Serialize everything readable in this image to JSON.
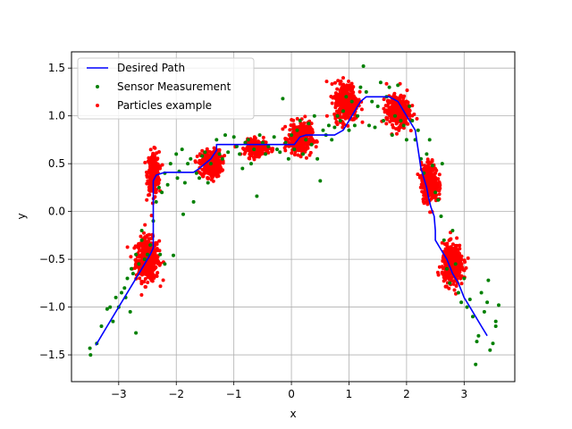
{
  "chart_data": {
    "type": "scatter",
    "xlabel": "x",
    "ylabel": "y",
    "xlim": [
      -3.82,
      3.88
    ],
    "ylim": [
      -1.78,
      1.67
    ],
    "xticks": [
      -3,
      -2,
      -1,
      0,
      1,
      2,
      3
    ],
    "yticks": [
      -1.5,
      -1.0,
      -0.5,
      0.0,
      0.5,
      1.0,
      1.5
    ],
    "xtick_labels": [
      "−3",
      "−2",
      "−1",
      "0",
      "1",
      "2",
      "3"
    ],
    "ytick_labels": [
      "−1.5",
      "−1.0",
      "−0.5",
      "0.0",
      "0.5",
      "1.0",
      "1.5"
    ],
    "grid": true,
    "legend_position": "top-left",
    "colors": {
      "desired_path": "#0000ff",
      "sensor": "#008000",
      "particles": "#ff0000"
    },
    "series": [
      {
        "name": "Desired Path",
        "kind": "line",
        "points": [
          [
            -3.4,
            -1.4
          ],
          [
            -3.2,
            -1.2
          ],
          [
            -3.0,
            -1.0
          ],
          [
            -2.8,
            -0.8
          ],
          [
            -2.6,
            -0.6
          ],
          [
            -2.45,
            -0.45
          ],
          [
            -2.4,
            -0.38
          ],
          [
            -2.4,
            0.0
          ],
          [
            -2.4,
            0.32
          ],
          [
            -2.35,
            0.38
          ],
          [
            -2.2,
            0.41
          ],
          [
            -1.7,
            0.41
          ],
          [
            -1.6,
            0.45
          ],
          [
            -1.5,
            0.5
          ],
          [
            -1.4,
            0.55
          ],
          [
            -1.3,
            0.64
          ],
          [
            -1.3,
            0.7
          ],
          [
            -1.0,
            0.7
          ],
          [
            -0.6,
            0.7
          ],
          [
            -0.2,
            0.7
          ],
          [
            0.05,
            0.7
          ],
          [
            0.15,
            0.78
          ],
          [
            0.25,
            0.8
          ],
          [
            0.5,
            0.8
          ],
          [
            0.75,
            0.8
          ],
          [
            0.9,
            0.85
          ],
          [
            1.0,
            0.95
          ],
          [
            1.1,
            1.05
          ],
          [
            1.2,
            1.15
          ],
          [
            1.3,
            1.2
          ],
          [
            1.5,
            1.2
          ],
          [
            1.7,
            1.2
          ],
          [
            1.85,
            1.15
          ],
          [
            1.95,
            1.05
          ],
          [
            2.05,
            0.95
          ],
          [
            2.15,
            0.85
          ],
          [
            2.2,
            0.65
          ],
          [
            2.25,
            0.45
          ],
          [
            2.3,
            0.35
          ],
          [
            2.35,
            0.25
          ],
          [
            2.38,
            0.15
          ],
          [
            2.42,
            0.05
          ],
          [
            2.48,
            -0.05
          ],
          [
            2.5,
            -0.2
          ],
          [
            2.5,
            -0.3
          ],
          [
            2.6,
            -0.4
          ],
          [
            2.7,
            -0.5
          ],
          [
            2.8,
            -0.65
          ],
          [
            2.9,
            -0.75
          ],
          [
            3.0,
            -0.9
          ],
          [
            3.1,
            -1.0
          ],
          [
            3.2,
            -1.1
          ],
          [
            3.3,
            -1.2
          ],
          [
            3.4,
            -1.3
          ]
        ]
      },
      {
        "name": "Sensor Measurement",
        "kind": "scatter",
        "points": [
          [
            -3.5,
            -1.43
          ],
          [
            -3.49,
            -1.5
          ],
          [
            -3.38,
            -1.38
          ],
          [
            -3.3,
            -1.2
          ],
          [
            -3.2,
            -1.02
          ],
          [
            -3.15,
            -1.0
          ],
          [
            -3.1,
            -1.15
          ],
          [
            -3.05,
            -0.9
          ],
          [
            -3.0,
            -1.0
          ],
          [
            -2.95,
            -0.85
          ],
          [
            -2.9,
            -0.8
          ],
          [
            -2.88,
            -0.9
          ],
          [
            -2.85,
            -0.7
          ],
          [
            -2.8,
            -1.05
          ],
          [
            -2.78,
            -0.6
          ],
          [
            -2.75,
            -0.65
          ],
          [
            -2.7,
            -1.27
          ],
          [
            -2.7,
            -0.45
          ],
          [
            -2.65,
            -0.55
          ],
          [
            -2.6,
            -0.3
          ],
          [
            -2.6,
            -0.2
          ],
          [
            -2.55,
            -0.5
          ],
          [
            -2.5,
            -0.45
          ],
          [
            -2.45,
            -0.35
          ],
          [
            -2.4,
            -0.1
          ],
          [
            -2.35,
            0.1
          ],
          [
            -2.3,
            0.25
          ],
          [
            -2.28,
            -0.45
          ],
          [
            -2.25,
            0.2
          ],
          [
            -2.2,
            -0.55
          ],
          [
            -2.2,
            0.4
          ],
          [
            -2.15,
            0.28
          ],
          [
            -2.1,
            0.5
          ],
          [
            -2.05,
            -0.46
          ],
          [
            -2.0,
            0.6
          ],
          [
            -1.98,
            0.35
          ],
          [
            -1.95,
            0.42
          ],
          [
            -1.9,
            0.65
          ],
          [
            -1.88,
            -0.03
          ],
          [
            -1.85,
            0.3
          ],
          [
            -1.8,
            0.5
          ],
          [
            -1.75,
            0.55
          ],
          [
            -1.7,
            0.1
          ],
          [
            -1.65,
            0.4
          ],
          [
            -1.6,
            0.35
          ],
          [
            -1.55,
            0.58
          ],
          [
            -1.5,
            0.62
          ],
          [
            -1.45,
            0.3
          ],
          [
            -1.4,
            0.5
          ],
          [
            -1.3,
            0.75
          ],
          [
            -1.25,
            0.6
          ],
          [
            -1.2,
            0.55
          ],
          [
            -1.15,
            0.8
          ],
          [
            -1.1,
            0.62
          ],
          [
            -1.0,
            0.78
          ],
          [
            -0.95,
            0.68
          ],
          [
            -0.9,
            0.6
          ],
          [
            -0.85,
            0.45
          ],
          [
            -0.8,
            0.72
          ],
          [
            -0.75,
            0.75
          ],
          [
            -0.7,
            0.5
          ],
          [
            -0.65,
            0.65
          ],
          [
            -0.6,
            0.16
          ],
          [
            -0.55,
            0.8
          ],
          [
            -0.5,
            0.72
          ],
          [
            -0.45,
            0.6
          ],
          [
            -0.4,
            0.68
          ],
          [
            -0.3,
            0.78
          ],
          [
            -0.25,
            0.65
          ],
          [
            -0.2,
            0.62
          ],
          [
            -0.15,
            1.18
          ],
          [
            -0.1,
            0.72
          ],
          [
            -0.05,
            0.55
          ],
          [
            0.0,
            0.8
          ],
          [
            0.05,
            0.65
          ],
          [
            0.1,
            0.85
          ],
          [
            0.15,
            0.95
          ],
          [
            0.2,
            0.6
          ],
          [
            0.25,
            0.75
          ],
          [
            0.3,
            0.92
          ],
          [
            0.35,
            0.7
          ],
          [
            0.4,
            1.0
          ],
          [
            0.45,
            0.55
          ],
          [
            0.5,
            0.32
          ],
          [
            0.55,
            0.85
          ],
          [
            0.6,
            0.8
          ],
          [
            0.65,
            0.9
          ],
          [
            0.7,
            0.75
          ],
          [
            0.75,
            0.88
          ],
          [
            0.8,
            1.0
          ],
          [
            0.85,
            0.95
          ],
          [
            0.9,
            1.05
          ],
          [
            0.95,
            1.2
          ],
          [
            1.0,
            0.85
          ],
          [
            1.05,
            1.15
          ],
          [
            1.1,
            0.9
          ],
          [
            1.15,
            1.0
          ],
          [
            1.2,
            1.3
          ],
          [
            1.25,
            1.52
          ],
          [
            1.3,
            1.25
          ],
          [
            1.35,
            0.9
          ],
          [
            1.4,
            1.15
          ],
          [
            1.45,
            0.88
          ],
          [
            1.5,
            1.1
          ],
          [
            1.55,
            1.35
          ],
          [
            1.6,
            0.95
          ],
          [
            1.65,
            1.2
          ],
          [
            1.7,
            1.3
          ],
          [
            1.75,
            0.8
          ],
          [
            1.8,
            1.0
          ],
          [
            1.85,
            1.32
          ],
          [
            1.9,
            0.95
          ],
          [
            1.95,
            0.9
          ],
          [
            2.0,
            0.75
          ],
          [
            2.05,
            1.1
          ],
          [
            2.1,
            0.95
          ],
          [
            2.15,
            0.75
          ],
          [
            2.2,
            0.85
          ],
          [
            2.25,
            0.55
          ],
          [
            2.3,
            0.4
          ],
          [
            2.35,
            0.6
          ],
          [
            2.4,
            0.75
          ],
          [
            2.45,
            0.48
          ],
          [
            2.5,
            0.2
          ],
          [
            2.55,
            0.12
          ],
          [
            2.6,
            -0.05
          ],
          [
            2.62,
            0.5
          ],
          [
            2.65,
            -0.3
          ],
          [
            2.7,
            -0.6
          ],
          [
            2.75,
            -0.75
          ],
          [
            2.8,
            -0.2
          ],
          [
            2.85,
            -0.55
          ],
          [
            2.9,
            -0.85
          ],
          [
            2.95,
            -0.95
          ],
          [
            3.0,
            -0.7
          ],
          [
            3.05,
            -1.0
          ],
          [
            3.1,
            -0.92
          ],
          [
            3.15,
            -1.1
          ],
          [
            3.2,
            -1.6
          ],
          [
            3.25,
            -1.3
          ],
          [
            3.3,
            -0.85
          ],
          [
            3.35,
            -1.05
          ],
          [
            3.4,
            -0.95
          ],
          [
            3.45,
            -1.45
          ],
          [
            3.5,
            -1.38
          ],
          [
            3.55,
            -1.2
          ],
          [
            3.6,
            -0.98
          ],
          [
            3.55,
            -1.15
          ],
          [
            3.42,
            -0.72
          ],
          [
            3.22,
            -1.36
          ]
        ]
      },
      {
        "name": "Particles example",
        "kind": "scatter",
        "clusters": [
          {
            "center": [
              -2.5,
              -0.5
            ],
            "spread": [
              0.1,
              0.11
            ],
            "count": 420
          },
          {
            "center": [
              -2.4,
              0.4
            ],
            "spread": [
              0.05,
              0.11
            ],
            "count": 260
          },
          {
            "center": [
              -1.4,
              0.5
            ],
            "spread": [
              0.09,
              0.07
            ],
            "count": 320
          },
          {
            "center": [
              -0.6,
              0.67
            ],
            "spread": [
              0.1,
              0.04
            ],
            "count": 260
          },
          {
            "center": [
              0.15,
              0.76
            ],
            "spread": [
              0.1,
              0.08
            ],
            "count": 320
          },
          {
            "center": [
              0.95,
              1.15
            ],
            "spread": [
              0.1,
              0.1
            ],
            "count": 380
          },
          {
            "center": [
              1.85,
              1.05
            ],
            "spread": [
              0.1,
              0.08
            ],
            "count": 360
          },
          {
            "center": [
              2.4,
              0.3
            ],
            "spread": [
              0.07,
              0.1
            ],
            "count": 340
          },
          {
            "center": [
              2.8,
              -0.55
            ],
            "spread": [
              0.09,
              0.1
            ],
            "count": 380
          }
        ]
      }
    ]
  }
}
